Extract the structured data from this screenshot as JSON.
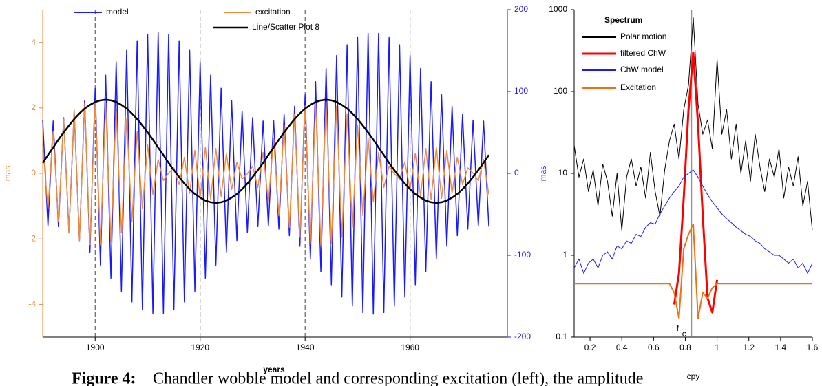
{
  "chart_data": [
    {
      "type": "line",
      "x_label": "years",
      "y_label": "mas",
      "y2_label": "mas",
      "xlim": [
        1890,
        1975
      ],
      "xticks": [
        1900,
        1920,
        1940,
        1960
      ],
      "ylim": [
        -5,
        5
      ],
      "yticks": [
        -4,
        -2,
        0,
        2,
        4
      ],
      "y2lim": [
        -200,
        200
      ],
      "y2ticks": [
        -200,
        -100,
        0,
        100,
        200
      ],
      "y_axis_color": "#f08a3c",
      "y2_axis_color": "#1a1aff",
      "grid_x": "dashed",
      "x": [
        1890,
        1891,
        1892,
        1893,
        1894,
        1895,
        1896,
        1897,
        1898,
        1899,
        1900,
        1901,
        1902,
        1903,
        1904,
        1905,
        1906,
        1907,
        1908,
        1909,
        1910,
        1911,
        1912,
        1913,
        1914,
        1915,
        1916,
        1917,
        1918,
        1919,
        1920,
        1921,
        1922,
        1923,
        1924,
        1925,
        1926,
        1927,
        1928,
        1929,
        1930,
        1931,
        1932,
        1933,
        1934,
        1935,
        1936,
        1937,
        1938,
        1939,
        1940,
        1941,
        1942,
        1943,
        1944,
        1945,
        1946,
        1947,
        1948,
        1949,
        1950,
        1951,
        1952,
        1953,
        1954,
        1955,
        1956,
        1957,
        1958,
        1959,
        1960,
        1961,
        1962,
        1963,
        1964,
        1965,
        1966,
        1967,
        1968,
        1969,
        1970,
        1971,
        1972,
        1973,
        1974,
        1975
      ],
      "series": [
        {
          "name": "model",
          "color": "#1a1aff",
          "axis": "y2",
          "width": 1.5,
          "values": [
            65,
            -64,
            64,
            -65,
            68,
            -72,
            76,
            -82,
            89,
            -96,
            104,
            -112,
            120,
            -128,
            136,
            -144,
            151,
            -157,
            162,
            -166,
            170,
            -171,
            172,
            -171,
            170,
            -166,
            162,
            -157,
            151,
            -144,
            136,
            -128,
            120,
            -112,
            104,
            -96,
            89,
            -82,
            76,
            -72,
            68,
            -65,
            64,
            -64,
            65,
            -68,
            72,
            -76,
            82,
            -89,
            96,
            -104,
            112,
            -120,
            128,
            -136,
            144,
            -151,
            157,
            -162,
            166,
            -170,
            171,
            -172,
            171,
            -170,
            166,
            -162,
            157,
            -151,
            144,
            -136,
            128,
            -120,
            112,
            -104,
            96,
            -89,
            82,
            -76,
            72,
            -68,
            65,
            -64,
            64,
            -65
          ]
        },
        {
          "name": "excitation",
          "color": "#f08a3c",
          "width": 1.5,
          "values": [
            0.87,
            -1.08,
            1.29,
            -1.48,
            1.66,
            -1.82,
            1.95,
            -2.06,
            2.14,
            -2.18,
            2.2,
            -2.18,
            2.14,
            -2.06,
            1.95,
            -1.82,
            1.66,
            -1.48,
            1.29,
            -1.08,
            0.87,
            -0.64,
            0.43,
            -0.22,
            0.01,
            0.17,
            -0.34,
            0.49,
            -0.61,
            0.7,
            -0.76,
            0.8,
            -0.8,
            0.76,
            -0.7,
            0.61,
            -0.49,
            0.34,
            -0.17,
            -0.01,
            0.22,
            -0.43,
            0.64,
            -0.87,
            1.08,
            -1.29,
            1.48,
            -1.66,
            1.82,
            -1.95,
            2.06,
            -2.14,
            2.18,
            -2.2,
            2.18,
            -2.14,
            2.06,
            -1.95,
            1.82,
            -1.66,
            1.48,
            -1.29,
            1.08,
            -0.87,
            0.64,
            -0.43,
            0.22,
            -0.01,
            -0.17,
            0.34,
            -0.49,
            0.61,
            -0.7,
            0.76,
            -0.8,
            0.8,
            -0.76,
            0.7,
            -0.61,
            0.49,
            -0.34,
            0.17,
            0.01,
            -0.22,
            0.43,
            -0.64
          ]
        },
        {
          "name": "Line/Scatter Plot 8",
          "color": "#000000",
          "width": 2.5,
          "values": [
            0.32,
            0.56,
            0.79,
            1.03,
            1.25,
            1.46,
            1.66,
            1.83,
            1.98,
            2.09,
            2.18,
            2.23,
            2.25,
            2.23,
            2.18,
            2.09,
            1.98,
            1.83,
            1.66,
            1.46,
            1.25,
            1.03,
            0.79,
            0.56,
            0.32,
            0.1,
            -0.11,
            -0.31,
            -0.48,
            -0.63,
            -0.74,
            -0.83,
            -0.88,
            -0.9,
            -0.88,
            -0.83,
            -0.74,
            -0.63,
            -0.48,
            -0.31,
            -0.11,
            0.1,
            0.32,
            0.56,
            0.79,
            1.03,
            1.25,
            1.46,
            1.66,
            1.83,
            1.98,
            2.09,
            2.18,
            2.23,
            2.25,
            2.23,
            2.18,
            2.09,
            1.98,
            1.83,
            1.66,
            1.46,
            1.25,
            1.03,
            0.79,
            0.56,
            0.32,
            0.1,
            -0.11,
            -0.31,
            -0.48,
            -0.63,
            -0.74,
            -0.83,
            -0.88,
            -0.9,
            -0.88,
            -0.83,
            -0.74,
            -0.63,
            -0.48,
            -0.31,
            -0.11,
            0.1,
            0.32,
            0.56
          ]
        }
      ]
    },
    {
      "type": "line",
      "title": "Spectrum",
      "x_label": "cpy",
      "log_y": true,
      "xlim": [
        0.1,
        1.6
      ],
      "xticks": [
        0.2,
        0.4,
        0.6,
        0.8,
        1,
        1.2,
        1.4,
        1.6
      ],
      "ylim": [
        0.1,
        1000
      ],
      "yticks": [
        0.1,
        1,
        10,
        100,
        1000
      ],
      "annotation": {
        "text": "f",
        "subscript": "c",
        "x": 0.84
      },
      "x": [
        0.1,
        0.13,
        0.16,
        0.19,
        0.22,
        0.25,
        0.28,
        0.31,
        0.34,
        0.37,
        0.4,
        0.43,
        0.46,
        0.49,
        0.52,
        0.55,
        0.58,
        0.61,
        0.64,
        0.67,
        0.7,
        0.73,
        0.76,
        0.79,
        0.82,
        0.85,
        0.88,
        0.91,
        0.94,
        0.97,
        1,
        1.03,
        1.06,
        1.09,
        1.12,
        1.15,
        1.18,
        1.21,
        1.24,
        1.27,
        1.3,
        1.33,
        1.36,
        1.39,
        1.42,
        1.45,
        1.48,
        1.51,
        1.54,
        1.57,
        1.6
      ],
      "series": [
        {
          "name": "Polar motion",
          "color": "#000000",
          "width": 1,
          "values": [
            22,
            9,
            15,
            6,
            11,
            4,
            13,
            8,
            3,
            10,
            2,
            9,
            15,
            7,
            12,
            5,
            18,
            6,
            3,
            11,
            25,
            40,
            15,
            60,
            120,
            800,
            70,
            30,
            45,
            20,
            250,
            30,
            60,
            15,
            40,
            10,
            25,
            8,
            30,
            12,
            6,
            15,
            9,
            20,
            5,
            12,
            7,
            16,
            4,
            8,
            2
          ]
        },
        {
          "name": "filtered ChW",
          "color": "#ff0000",
          "width": 3,
          "values": [
            null,
            null,
            null,
            null,
            null,
            null,
            null,
            null,
            null,
            null,
            null,
            null,
            null,
            null,
            null,
            null,
            null,
            null,
            null,
            null,
            null,
            0.25,
            0.6,
            5,
            60,
            300,
            40,
            3,
            0.3,
            0.2,
            0.5,
            null,
            null,
            null,
            null,
            null,
            null,
            null,
            null,
            null,
            null,
            null,
            null,
            null,
            null,
            null,
            null,
            null,
            null,
            null,
            null
          ]
        },
        {
          "name": "ChW model",
          "color": "#1a1aff",
          "width": 1,
          "values": [
            0.7,
            0.9,
            0.6,
            0.8,
            0.9,
            0.7,
            1,
            1.1,
            0.9,
            1.3,
            1.2,
            1.5,
            1.4,
            1.8,
            1.7,
            2.2,
            2.5,
            2.4,
            3.2,
            4,
            5,
            6,
            7,
            9,
            10,
            11,
            9,
            7,
            5.5,
            4.5,
            3.8,
            3.2,
            2.8,
            2.5,
            2.2,
            2,
            1.8,
            1.7,
            1.5,
            1.4,
            1.2,
            1.1,
            1,
            1,
            0.9,
            0.8,
            0.9,
            0.7,
            0.8,
            0.6,
            0.8
          ]
        },
        {
          "name": "Excitation",
          "color": "#f07010",
          "width": 2,
          "values": [
            0.45,
            0.45,
            0.45,
            0.45,
            0.45,
            0.45,
            0.45,
            0.45,
            0.45,
            0.45,
            0.45,
            0.45,
            0.45,
            0.45,
            0.45,
            0.45,
            0.45,
            0.45,
            0.45,
            0.45,
            0.45,
            0.35,
            0.17,
            1.2,
            1.8,
            2.4,
            0.17,
            0.35,
            0.3,
            0.4,
            0.45,
            0.45,
            0.45,
            0.45,
            0.45,
            0.45,
            0.45,
            0.45,
            0.45,
            0.45,
            0.45,
            0.45,
            0.45,
            0.45,
            0.45,
            0.45,
            0.45,
            0.45,
            0.45,
            0.45,
            0.45
          ]
        }
      ]
    }
  ],
  "caption": {
    "label": "Figure 4:",
    "text": "Chandler wobble model and corresponding excitation (left), the amplitude"
  }
}
